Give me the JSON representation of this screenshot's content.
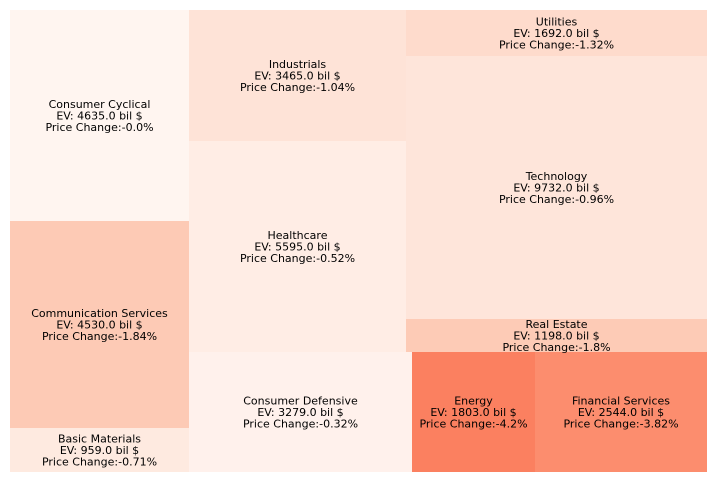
{
  "chart_data": {
    "type": "treemap",
    "title": "",
    "value_label": "EV",
    "value_unit": "bil $",
    "color_label": "Price Change",
    "color_unit": "%",
    "sectors": [
      {
        "name": "Consumer Cyclical",
        "ev": 4635.0,
        "change": -0.0,
        "line1": "Consumer Cyclical",
        "line2": "EV: 4635.0 bil $",
        "line3": "Price Change:-0.0%",
        "color": "#fff5f0"
      },
      {
        "name": "Communication Services",
        "ev": 4530.0,
        "change": -1.84,
        "line1": "Communication Services",
        "line2": "EV: 4530.0 bil $",
        "line3": "Price Change:-1.84%",
        "color": "#fdcab5"
      },
      {
        "name": "Basic Materials",
        "ev": 959.0,
        "change": -0.71,
        "line1": "Basic Materials",
        "line2": "EV: 959.0 bil $",
        "line3": "Price Change:-0.71%",
        "color": "#feeae0"
      },
      {
        "name": "Industrials",
        "ev": 3465.0,
        "change": -1.04,
        "line1": "Industrials",
        "line2": "EV: 3465.0 bil $",
        "line3": "Price Change:-1.04%",
        "color": "#fee3d7"
      },
      {
        "name": "Healthcare",
        "ev": 5595.0,
        "change": -0.52,
        "line1": "Healthcare",
        "line2": "EV: 5595.0 bil $",
        "line3": "Price Change:-0.52%",
        "color": "#ffede5"
      },
      {
        "name": "Consumer Defensive",
        "ev": 3279.0,
        "change": -0.32,
        "line1": "Consumer Defensive",
        "line2": "EV: 3279.0 bil $",
        "line3": "Price Change:-0.32%",
        "color": "#fff1ec"
      },
      {
        "name": "Utilities",
        "ev": 1692.0,
        "change": -1.32,
        "line1": "Utilities",
        "line2": "EV: 1692.0 bil $",
        "line3": "Price Change:-1.32%",
        "color": "#fedbcc"
      },
      {
        "name": "Technology",
        "ev": 9732.0,
        "change": -0.96,
        "line1": "Technology",
        "line2": "EV: 9732.0 bil $",
        "line3": "Price Change:-0.96%",
        "color": "#fee5da"
      },
      {
        "name": "Real Estate",
        "ev": 1198.0,
        "change": -1.8,
        "line1": "Real Estate",
        "line2": "EV: 1198.0 bil $",
        "line3": "Price Change:-1.8%",
        "color": "#fdcbb6"
      },
      {
        "name": "Energy",
        "ev": 1803.0,
        "change": -4.2,
        "line1": "Energy",
        "line2": "EV: 1803.0 bil $",
        "line3": "Price Change:-4.2%",
        "color": "#fb8060"
      },
      {
        "name": "Financial Services",
        "ev": 2544.0,
        "change": -3.82,
        "line1": "Financial Services",
        "line2": "EV: 2544.0 bil $",
        "line3": "Price Change:-3.82%",
        "color": "#fc8d6e"
      }
    ]
  }
}
